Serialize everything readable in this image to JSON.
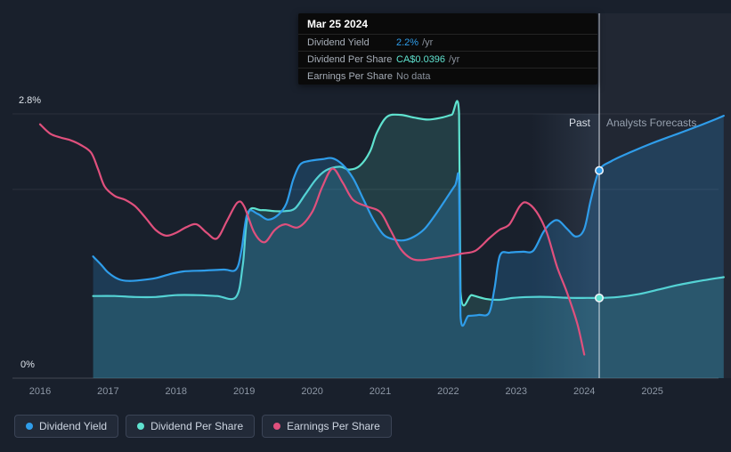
{
  "page": {
    "background": "#19202c"
  },
  "labels": {
    "past": "Past",
    "forecast": "Analysts Forecasts"
  },
  "tooltip": {
    "date": "Mar 25 2024",
    "rows": [
      {
        "label": "Dividend Yield",
        "value": "2.2%",
        "suffix": "/yr",
        "color": "#2f9dea"
      },
      {
        "label": "Dividend Per Share",
        "value": "CA$0.0396",
        "suffix": "/yr",
        "color": "#5fe2cf"
      },
      {
        "label": "Earnings Per Share",
        "value": "No data",
        "suffix": "",
        "color": "#8a919c"
      }
    ]
  },
  "legend": {
    "items": [
      {
        "label": "Dividend Yield",
        "color": "#2f9dea"
      },
      {
        "label": "Dividend Per Share",
        "color": "#5fe2cf"
      },
      {
        "label": "Earnings Per Share",
        "color": "#e0507d"
      }
    ]
  },
  "chart_data": {
    "type": "line",
    "title": "",
    "xlabel": "",
    "ylabel": "",
    "x_domain": [
      2015.6,
      2026.05
    ],
    "y_domain": [
      0,
      2.8
    ],
    "grid": true,
    "legend_position": "bottom-left",
    "x_ticks": [
      {
        "value": 2016,
        "label": "2016"
      },
      {
        "value": 2017,
        "label": "2017"
      },
      {
        "value": 2018,
        "label": "2018"
      },
      {
        "value": 2019,
        "label": "2019"
      },
      {
        "value": 2020,
        "label": "2020"
      },
      {
        "value": 2021,
        "label": "2021"
      },
      {
        "value": 2022,
        "label": "2022"
      },
      {
        "value": 2023,
        "label": "2023"
      },
      {
        "value": 2024,
        "label": "2024"
      },
      {
        "value": 2025,
        "label": "2025"
      }
    ],
    "y_ticks": [
      {
        "value": 2.8,
        "label": "2.8%"
      },
      {
        "value": 2.0,
        "label": ""
      },
      {
        "value": 0,
        "label": "0%"
      }
    ],
    "now": {
      "x": 2024.22,
      "date": "Mar 25 2024"
    },
    "past_highlight": [
      2023.22,
      2024.22
    ],
    "series": [
      {
        "name": "Dividend Yield",
        "color": "#2f9dea",
        "area_opacity": 0.22,
        "now_value": 2.2,
        "points": [
          [
            2016.78,
            1.29
          ],
          [
            2016.9,
            1.2
          ],
          [
            2017.0,
            1.12
          ],
          [
            2017.15,
            1.05
          ],
          [
            2017.3,
            1.03
          ],
          [
            2017.5,
            1.04
          ],
          [
            2017.7,
            1.06
          ],
          [
            2017.9,
            1.1
          ],
          [
            2018.1,
            1.13
          ],
          [
            2018.4,
            1.14
          ],
          [
            2018.7,
            1.15
          ],
          [
            2018.88,
            1.15
          ],
          [
            2018.96,
            1.35
          ],
          [
            2019.05,
            1.75
          ],
          [
            2019.2,
            1.74
          ],
          [
            2019.35,
            1.68
          ],
          [
            2019.5,
            1.73
          ],
          [
            2019.62,
            1.85
          ],
          [
            2019.72,
            2.1
          ],
          [
            2019.82,
            2.26
          ],
          [
            2019.95,
            2.3
          ],
          [
            2020.15,
            2.32
          ],
          [
            2020.3,
            2.33
          ],
          [
            2020.45,
            2.26
          ],
          [
            2020.6,
            2.12
          ],
          [
            2020.75,
            1.9
          ],
          [
            2020.9,
            1.68
          ],
          [
            2021.05,
            1.52
          ],
          [
            2021.2,
            1.47
          ],
          [
            2021.35,
            1.46
          ],
          [
            2021.5,
            1.5
          ],
          [
            2021.65,
            1.58
          ],
          [
            2021.8,
            1.72
          ],
          [
            2021.95,
            1.88
          ],
          [
            2022.1,
            2.04
          ],
          [
            2022.16,
            2.07
          ],
          [
            2022.18,
            0.66
          ],
          [
            2022.3,
            0.66
          ],
          [
            2022.45,
            0.67
          ],
          [
            2022.6,
            0.69
          ],
          [
            2022.68,
            0.95
          ],
          [
            2022.76,
            1.3
          ],
          [
            2022.9,
            1.33
          ],
          [
            2023.1,
            1.34
          ],
          [
            2023.25,
            1.35
          ],
          [
            2023.4,
            1.55
          ],
          [
            2023.52,
            1.65
          ],
          [
            2023.62,
            1.67
          ],
          [
            2023.75,
            1.58
          ],
          [
            2023.88,
            1.5
          ],
          [
            2024.0,
            1.58
          ],
          [
            2024.1,
            1.9
          ],
          [
            2024.22,
            2.2
          ],
          [
            2024.4,
            2.3
          ],
          [
            2024.7,
            2.4
          ],
          [
            2025.0,
            2.49
          ],
          [
            2025.3,
            2.57
          ],
          [
            2025.6,
            2.65
          ],
          [
            2025.85,
            2.72
          ],
          [
            2026.05,
            2.78
          ]
        ]
      },
      {
        "name": "Dividend Per Share",
        "color": "#5fe2cf",
        "area_opacity": 0.16,
        "now_value": 0.85,
        "points": [
          [
            2016.78,
            0.87
          ],
          [
            2017.1,
            0.87
          ],
          [
            2017.4,
            0.86
          ],
          [
            2017.7,
            0.86
          ],
          [
            2018.0,
            0.88
          ],
          [
            2018.3,
            0.88
          ],
          [
            2018.6,
            0.87
          ],
          [
            2018.88,
            0.86
          ],
          [
            2018.98,
            1.2
          ],
          [
            2019.06,
            1.75
          ],
          [
            2019.25,
            1.78
          ],
          [
            2019.45,
            1.77
          ],
          [
            2019.6,
            1.77
          ],
          [
            2019.75,
            1.8
          ],
          [
            2019.9,
            1.95
          ],
          [
            2020.05,
            2.1
          ],
          [
            2020.2,
            2.2
          ],
          [
            2020.4,
            2.24
          ],
          [
            2020.55,
            2.21
          ],
          [
            2020.7,
            2.25
          ],
          [
            2020.85,
            2.4
          ],
          [
            2020.95,
            2.6
          ],
          [
            2021.1,
            2.77
          ],
          [
            2021.3,
            2.79
          ],
          [
            2021.5,
            2.76
          ],
          [
            2021.7,
            2.74
          ],
          [
            2021.9,
            2.76
          ],
          [
            2022.05,
            2.79
          ],
          [
            2022.16,
            2.8
          ],
          [
            2022.18,
            0.92
          ],
          [
            2022.35,
            0.88
          ],
          [
            2022.55,
            0.84
          ],
          [
            2022.75,
            0.83
          ],
          [
            2022.95,
            0.85
          ],
          [
            2023.2,
            0.86
          ],
          [
            2023.5,
            0.86
          ],
          [
            2023.8,
            0.85
          ],
          [
            2024.05,
            0.85
          ],
          [
            2024.22,
            0.85
          ],
          [
            2024.5,
            0.86
          ],
          [
            2024.8,
            0.89
          ],
          [
            2025.1,
            0.94
          ],
          [
            2025.4,
            0.99
          ],
          [
            2025.7,
            1.03
          ],
          [
            2026.05,
            1.07
          ]
        ]
      },
      {
        "name": "Earnings Per Share",
        "color": "#e0507d",
        "area_opacity": 0,
        "now_value": null,
        "points": [
          [
            2016.0,
            2.69
          ],
          [
            2016.15,
            2.59
          ],
          [
            2016.3,
            2.55
          ],
          [
            2016.45,
            2.52
          ],
          [
            2016.6,
            2.47
          ],
          [
            2016.75,
            2.39
          ],
          [
            2016.85,
            2.22
          ],
          [
            2016.95,
            2.03
          ],
          [
            2017.1,
            1.93
          ],
          [
            2017.25,
            1.89
          ],
          [
            2017.4,
            1.82
          ],
          [
            2017.55,
            1.7
          ],
          [
            2017.7,
            1.57
          ],
          [
            2017.85,
            1.51
          ],
          [
            2018.0,
            1.54
          ],
          [
            2018.15,
            1.6
          ],
          [
            2018.3,
            1.63
          ],
          [
            2018.45,
            1.54
          ],
          [
            2018.6,
            1.48
          ],
          [
            2018.75,
            1.67
          ],
          [
            2018.9,
            1.86
          ],
          [
            2019.0,
            1.82
          ],
          [
            2019.15,
            1.54
          ],
          [
            2019.3,
            1.44
          ],
          [
            2019.45,
            1.57
          ],
          [
            2019.6,
            1.63
          ],
          [
            2019.8,
            1.6
          ],
          [
            2020.0,
            1.76
          ],
          [
            2020.15,
            2.03
          ],
          [
            2020.3,
            2.22
          ],
          [
            2020.45,
            2.07
          ],
          [
            2020.6,
            1.89
          ],
          [
            2020.8,
            1.82
          ],
          [
            2021.0,
            1.76
          ],
          [
            2021.15,
            1.57
          ],
          [
            2021.3,
            1.37
          ],
          [
            2021.45,
            1.27
          ],
          [
            2021.6,
            1.25
          ],
          [
            2021.8,
            1.27
          ],
          [
            2022.0,
            1.29
          ],
          [
            2022.2,
            1.32
          ],
          [
            2022.4,
            1.35
          ],
          [
            2022.6,
            1.48
          ],
          [
            2022.75,
            1.57
          ],
          [
            2022.9,
            1.63
          ],
          [
            2023.05,
            1.82
          ],
          [
            2023.15,
            1.86
          ],
          [
            2023.3,
            1.76
          ],
          [
            2023.45,
            1.54
          ],
          [
            2023.6,
            1.18
          ],
          [
            2023.75,
            0.9
          ],
          [
            2023.9,
            0.57
          ],
          [
            2024.0,
            0.25
          ]
        ]
      }
    ]
  }
}
